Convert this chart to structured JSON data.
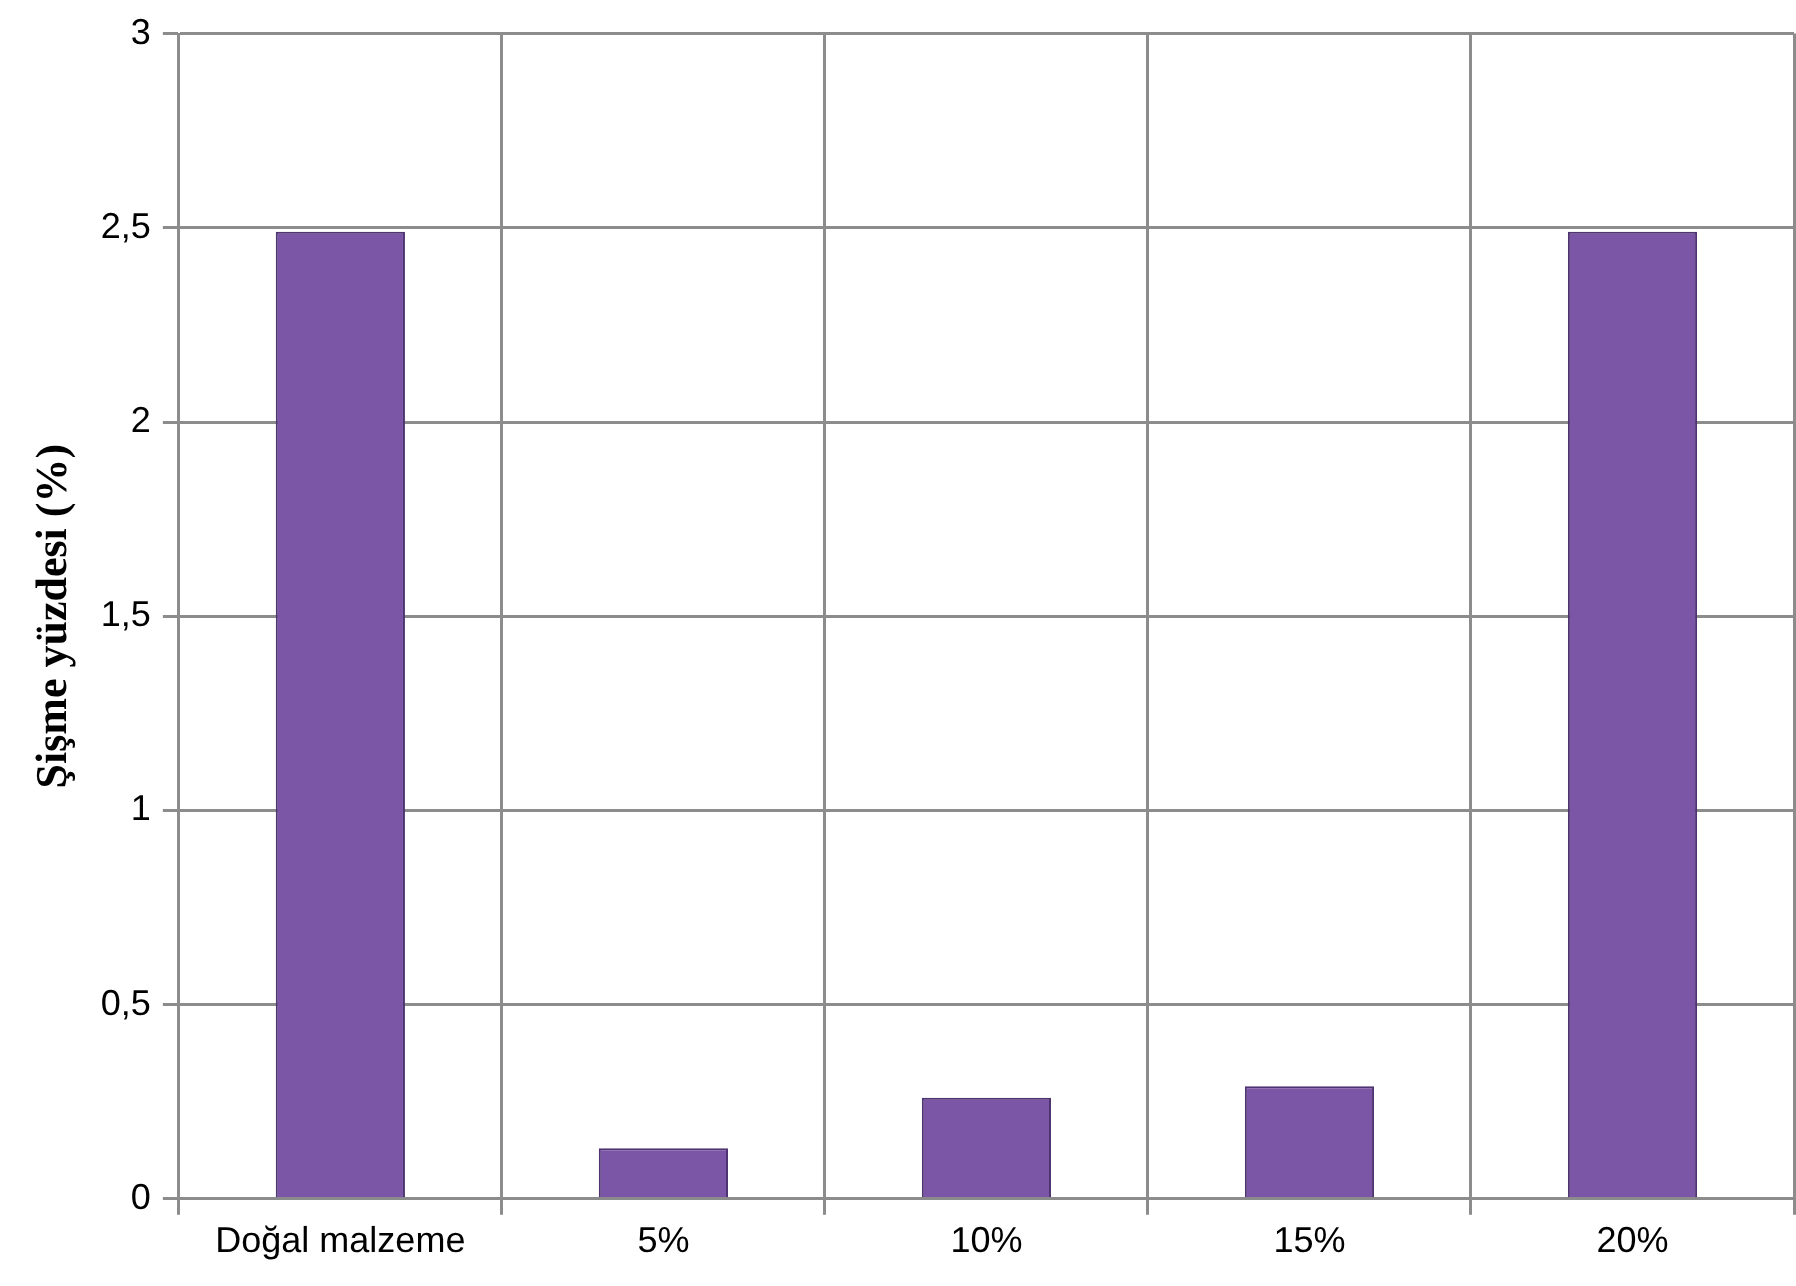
{
  "chart_data": {
    "type": "bar",
    "ylabel": "Şişme yüzdesi (%)",
    "categories": [
      "Doğal malzeme",
      "5%",
      "10%",
      "15%",
      "20%"
    ],
    "values": [
      2.49,
      0.13,
      0.26,
      0.29,
      2.49
    ],
    "color": "#7b55a6",
    "ylim": [
      0,
      3
    ],
    "yticks": [
      {
        "value": 0,
        "label": "0"
      },
      {
        "value": 0.5,
        "label": "0,5"
      },
      {
        "value": 1,
        "label": "1"
      },
      {
        "value": 1.5,
        "label": "1,5"
      },
      {
        "value": 2,
        "label": "2"
      },
      {
        "value": 2.5,
        "label": "2,5"
      },
      {
        "value": 3,
        "label": "3"
      }
    ],
    "grid": true
  }
}
